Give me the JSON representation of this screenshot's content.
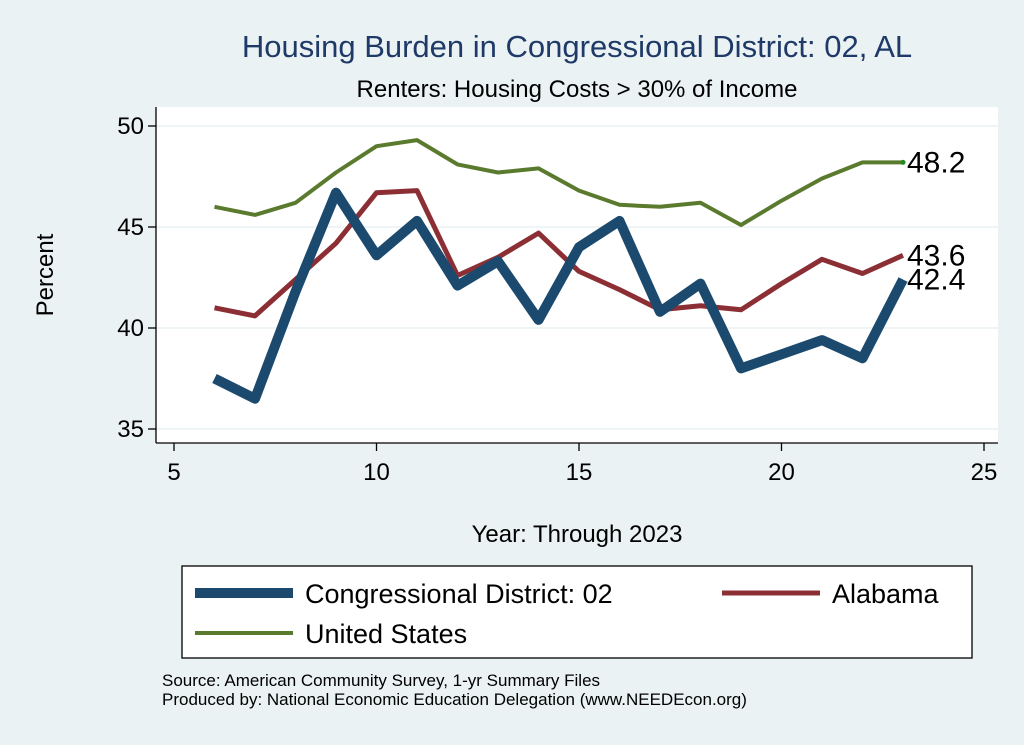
{
  "chart_data": {
    "type": "line",
    "title": "Housing Burden in Congressional District:  02, AL",
    "subtitle": "Renters: Housing Costs > 30% of Income",
    "xlabel": "Year: Through 2023",
    "ylabel": "Percent",
    "xlim": [
      5,
      25
    ],
    "ylim": [
      35,
      50
    ],
    "xticks": [
      5,
      10,
      15,
      20,
      25
    ],
    "yticks": [
      35,
      40,
      45,
      50
    ],
    "grid": true,
    "series": [
      {
        "name": "Congressional District:  02",
        "color": "#1b4a6e",
        "x": [
          6,
          7,
          8,
          9,
          10,
          11,
          12,
          13,
          14,
          15,
          16,
          17,
          18,
          19,
          20,
          21,
          22,
          23
        ],
        "values": [
          37.5,
          36.5,
          41.8,
          46.7,
          43.6,
          45.3,
          42.1,
          43.3,
          40.4,
          44.0,
          45.3,
          40.8,
          42.2,
          38.0,
          38.7,
          39.4,
          38.5,
          42.4
        ],
        "end_label": "42.4"
      },
      {
        "name": "Alabama",
        "color": "#8b2f35",
        "x": [
          6,
          7,
          8,
          9,
          10,
          11,
          12,
          13,
          14,
          15,
          16,
          17,
          18,
          19,
          20,
          21,
          22,
          23
        ],
        "values": [
          41.0,
          40.6,
          42.4,
          44.2,
          46.7,
          46.8,
          42.6,
          43.5,
          44.7,
          42.8,
          41.9,
          40.9,
          41.1,
          40.9,
          42.2,
          43.4,
          42.7,
          43.6
        ],
        "end_label": "43.6"
      },
      {
        "name": "United States",
        "color": "#5a7a2e",
        "x": [
          6,
          7,
          8,
          9,
          10,
          11,
          12,
          13,
          14,
          15,
          16,
          17,
          18,
          19,
          20,
          21,
          22,
          23
        ],
        "values": [
          46.0,
          45.6,
          46.2,
          47.7,
          49.0,
          49.3,
          48.1,
          47.7,
          47.9,
          46.8,
          46.1,
          46.0,
          46.2,
          45.1,
          46.3,
          47.4,
          48.2,
          48.2
        ],
        "end_label": "48.2"
      }
    ],
    "legend": {
      "placement": "bottom",
      "entries": [
        "Congressional District:  02",
        "Alabama",
        "United States"
      ]
    }
  },
  "source_lines": [
    "Source: American Community Survey, 1-yr Summary Files",
    "Produced by: National Economic Education Delegation (www.NEEDEcon.org)"
  ]
}
